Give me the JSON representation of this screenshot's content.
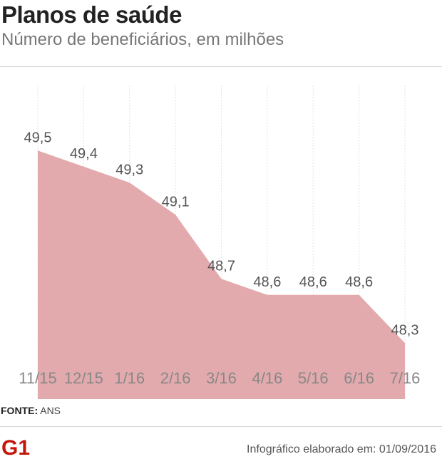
{
  "title": "Planos de saúde",
  "subtitle": "Número de beneficiários, em milhões",
  "source_label": "FONTE:",
  "source_value": "ANS",
  "credit": "Infográfico elaborado em: 01/09/2016",
  "logo_text": "G1",
  "colors": {
    "area": "#e2aaad",
    "label": "#555555",
    "tick": "#888888",
    "grid": "#f2dcdc"
  },
  "chart_data": {
    "type": "area",
    "title": "Planos de saúde",
    "subtitle": "Número de beneficiários, em milhões",
    "categories": [
      "11/15",
      "12/15",
      "1/16",
      "2/16",
      "3/16",
      "4/16",
      "5/16",
      "6/16",
      "7/16"
    ],
    "values": [
      49.5,
      49.4,
      49.3,
      49.1,
      48.7,
      48.6,
      48.6,
      48.6,
      48.3
    ],
    "value_labels": [
      "49,5",
      "49,4",
      "49,3",
      "49,1",
      "48,7",
      "48,6",
      "48,6",
      "48,6",
      "48,3"
    ],
    "ylim": [
      47.95,
      49.55
    ],
    "grid": true
  }
}
